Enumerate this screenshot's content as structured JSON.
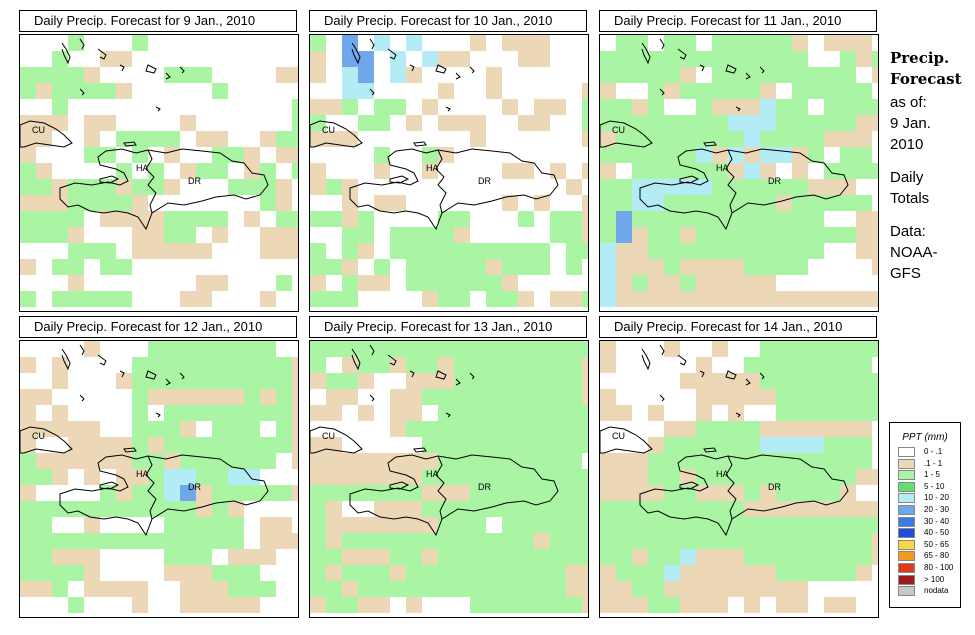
{
  "panels": [
    {
      "title": "Daily Precip. Forecast for  9 Jan., 2010",
      "grid": [
        "...a...a.........",
        "..a..bb...........",
        "aaaab....aaa....bb",
        "abaaaab.....a.....",
        "..a..............a",
        "bbb.bb....b......a",
        "bb..b.aaaa.bb..baa",
        "b...aa.a.b..aab.bb",
        "ab....a.a.baa.ba.a",
        "aabaaabaab...aaab.",
        "bbbaaaab.......ab.",
        "aaaa.bbbbaaaa.b.aa",
        "aaab...bbaa.b..bbb",
        "...aaa.bbbbb...bbb",
        "b.aa.aa...........",
        "...b.......bb...a.",
        "a.aaaaa...bb...b.."
      ]
    },
    {
      "title": "Daily Precip. Forecast for  10 Jan., 2010",
      "grid": [
        "a.d.c.c...b.bbb..",
        "b.dd.c.cbb...bb...",
        "b.cd.cb....b......",
        "..cc....b..b.....b",
        "bba.aa.b....b.bb.a",
        "a..aa.b.bbb..bb..a",
        "bbb.......b......b",
        "....a..ab.........",
        "b...b..b....bb.b.b",
        "bab.............b.",
        "..b.bb......b.b..b",
        "aaba....aa...a.aab",
        "..aa.aaaab.....aab",
        "a.ab.aaaaaaaaaa.aa",
        "aab.a.aaaaabaaa.a.",
        "b.abb.aaaaaab.....",
        "aaa....baa.aab.bba"
      ]
    },
    {
      "title": "Daily Precip. Forecast for  11 Jan., 2010",
      "grid": [
        ".aa.aa.aaaaab.bbb",
        "aaaaaaaaaaaaa..aba",
        "aaaaab.aaaaaaaaa.b",
        "b..abaaaaab.aaaaa.",
        "aaba..abbbcaa.aaaa",
        "aaaaaaaacccaaaaabb",
        "baaaaaaaacaaaabbb.",
        "aaaaaacbcbccba.aa.",
        "b.aaaaaabcb.b.aaaa",
        "aacccccaaaaaabbb..",
        "aaccaaaaaaabaaaaa.",
        "adaaaaaaaaaaaa..bb",
        "adbaabaaaaaaaaaabb",
        "cbbaaaaaaaaaaa..bb",
        "cbbbabbbbaaaa....b",
        "cbabbabbbbb.......",
        "cbbbbbbbbbbbbbbbbb"
      ]
    },
    {
      "title": "Daily Precip. Forecast for  12 Jan., 2010",
      "grid": [
        "....b...aaaaaaaa..",
        "b.b....aaaaaaaaaab",
        "..b...baaaaaaaaaab",
        "bb.....abbbbbbabab",
        "b.b....a.aaaaaaaab",
        "bbbbb..aaab.aaa.ab",
        "b..bbbbabaaaaaaaab",
        "abbbbbbaabaaaaaa.b",
        "aab.b.bbaccaacc...",
        "b....abaacdbaaaaab",
        "aaaaaaaaaaabab....",
        "aa..b....aaaaa.bb.",
        "aaaaaaaaaaaaaa.bbb",
        "aabbb....aaa.bbb..",
        "aaaab....bbbaaa...",
        "bba.bbbb..bbbaaa..",
        "...a...b..bbbbb..."
      ]
    },
    {
      "title": "Daily Precip. Forecast for  13 Jan., 2010",
      "grid": [
        "aaaaaaaaaaaaaaaaaa",
        "a.baabaabaaaaaaaab",
        "baab..bbbaaaaaaaab",
        ".bb..bbaaaaaaaaaab",
        "bb.b.bb.aaaaaaaaaab",
        ".....baaaaaaaaaaaa",
        "bb.....aaaaaaaaaaa",
        "bbbbbbbbaaaaaaaaa.",
        "bbbbbbbaaaaaaaaaaa",
        "aaaaaaabbbaaaaaaaa",
        "ab..bbbaaaaaaaaaaa",
        "abbbbbbbaaa.aaaaaa",
        "abaaaaaaaaaaaabaaa",
        "aabbbaabaaaaaaaaaa",
        "abaaabaaaaaaaaaabb",
        "aabaaaaaaaaaaaaabb",
        "baabb.b...aaaaaaab"
      ]
    },
    {
      "title": "Daily Precip. Forecast for  14 Jan., 2010",
      "grid": [
        "b...b..b..aaaaaaaa",
        "b.....b..aaaaaaaa.",
        ".....bbbbbaaaaaaaa",
        "b.....bbbbbaaaaaaa",
        "bb.b..b.b..aaaaaaa",
        "....bbaaaabbbbbbb.",
        "...baaaaaaccccaaa.",
        "bbbaaaaaaaaaaaaaa.",
        "bbbaabaaaaaaaaaabb",
        "bbbbaabbbabaaaab..",
        "aaaaaaaaabbbbbbbbb",
        "aaaaaaaaaaaaaaaaaa",
        "aaaaaaaaaaaaaaaaab",
        "aabaacbbbaaaaaaaab",
        "baaacbbbbbbaaaaab.",
        "bbaabbbbbbbbb.....",
        "bbbaabbb.b.bb.bb.."
      ]
    }
  ],
  "map_labels": {
    "cuba": "CU",
    "haiti": "HA",
    "dominican_republic": "DR"
  },
  "grid_colors": {
    ".": "#ffffff",
    "a": "#aaf5a3",
    "b": "#ecd8b7",
    "c": "#b4ecf6",
    "d": "#6fa8ea"
  },
  "side": {
    "title_line1": "Precip.",
    "title_line2": "Forecast",
    "as_of": "as of:",
    "date_line1": "9 Jan.",
    "date_line2": "2010",
    "totals_line1": "Daily",
    "totals_line2": "Totals",
    "data_line1": "Data:",
    "data_line2": "NOAA-",
    "data_line3": "GFS"
  },
  "legend": {
    "title": "PPT (mm)",
    "items": [
      {
        "label": "0 - .1",
        "color": "#ffffff"
      },
      {
        "label": ".1 - 1",
        "color": "#ecd8b7"
      },
      {
        "label": "1 - 5",
        "color": "#aaf5a3"
      },
      {
        "label": "5 - 10",
        "color": "#63e06a"
      },
      {
        "label": "10 - 20",
        "color": "#b4ecf6"
      },
      {
        "label": "20 - 30",
        "color": "#6fa8ea"
      },
      {
        "label": "30 - 40",
        "color": "#3a7be6"
      },
      {
        "label": "40 - 50",
        "color": "#1f4fd8"
      },
      {
        "label": "50 - 65",
        "color": "#f7d64a"
      },
      {
        "label": "65 - 80",
        "color": "#f59a1e"
      },
      {
        "label": "80 - 100",
        "color": "#e03a1c"
      },
      {
        "label": "> 100",
        "color": "#a0191c"
      },
      {
        "label": "nodata",
        "color": "#c8c8c8"
      }
    ]
  }
}
